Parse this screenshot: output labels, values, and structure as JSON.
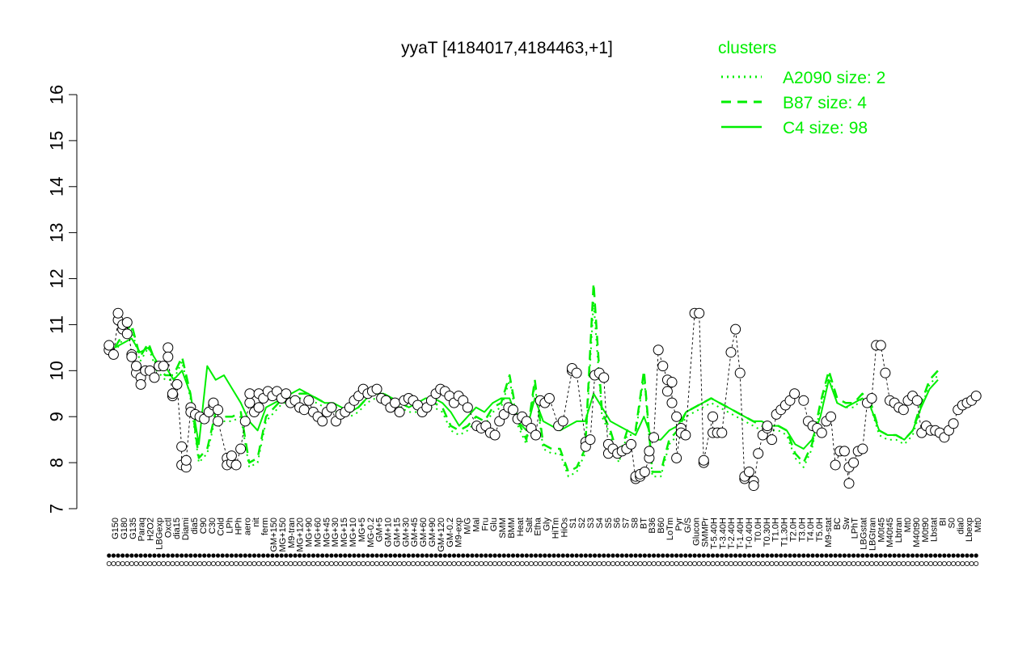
{
  "chart_data": {
    "type": "line",
    "title": "yyaT [4184017,4184463,+1]",
    "xlabel": "",
    "ylabel": "",
    "ylim": [
      7,
      16
    ],
    "yticks": [
      7,
      8,
      9,
      10,
      11,
      12,
      13,
      14,
      15,
      16
    ],
    "grid": false,
    "legend_position": "top-right",
    "legend": {
      "title": "clusters",
      "entries": [
        {
          "label": "A2090 size: 2",
          "style": "dotted"
        },
        {
          "label": "B87 size: 4",
          "style": "dashed"
        },
        {
          "label": "C4 size: 98",
          "style": "solid"
        }
      ]
    },
    "accent_color": "#00ee00",
    "tick_labels": [
      "G150",
      "G180",
      "G135",
      "Paraq",
      "H2O2",
      "LBGexp",
      "Oxctl",
      "dia15",
      "Diami",
      "dia5",
      "C90",
      "C30",
      "Cold",
      "LPh",
      "HPh",
      "aero",
      "nit",
      "ferm",
      "GM+150",
      "MG+150",
      "M9-tran",
      "MG+120",
      "MG+90",
      "MG+60",
      "MG+45",
      "MG+30",
      "MG+15",
      "MG+10",
      "MG+5",
      "MG-0.2",
      "GM+5",
      "GM+10",
      "GM+15",
      "GM+30",
      "GM+45",
      "GM+60",
      "GM+90",
      "GM+120",
      "GM-0.2",
      "M9-exp",
      "M/G",
      "Mal",
      "Fru",
      "Glu",
      "SMM",
      "BMM",
      "Heat",
      "Salt",
      "Etha",
      "Gly",
      "HiTm",
      "HiOs",
      "S1",
      "S2",
      "S3",
      "S4",
      "S5",
      "S6",
      "S7",
      "S8",
      "BT",
      "B36",
      "B60",
      "LoTm",
      "Pyr",
      "G/S",
      "Glucon",
      "SMMPr",
      "T-5.40H",
      "T-3.40H",
      "T-2.40H",
      "T-1.40H",
      "T-0.40H",
      "T0.0H",
      "T0.30H",
      "T1.0H",
      "T1.30H",
      "T2.0H",
      "T3.0H",
      "T4.0H",
      "T5.0H",
      "M9-stat",
      "BC",
      "Sw",
      "LPhT",
      "LBGstat",
      "LBGtran",
      "M0t45",
      "M40t45",
      "Lbtran",
      "Mt0",
      "M40t90",
      "M0t90",
      "Lbstat",
      "BI",
      "S0",
      "dia0",
      "Lbexp",
      "Mt0"
    ],
    "series": [
      {
        "name": "C4 size: 98",
        "style": "solid",
        "values": [
          10.5,
          10.6,
          10.7,
          10.4,
          10.5,
          10.2,
          10.1,
          9.8,
          10.0,
          9.5,
          8.4,
          10.1,
          9.8,
          9.9,
          9.6,
          9.3,
          8.9,
          8.7,
          9.2,
          9.3,
          9.4,
          9.5,
          9.6,
          9.5,
          9.4,
          9.3,
          9.3,
          9.2,
          9.1,
          9.2,
          9.4,
          9.5,
          9.5,
          9.3,
          9.3,
          9.2,
          9.3,
          9.4,
          9.4,
          9.3,
          9.1,
          8.8,
          9.0,
          9.2,
          9.1,
          9.3,
          9.4,
          9.4,
          8.9,
          8.7,
          9.4,
          8.9,
          8.8,
          8.7,
          8.8,
          8.9,
          8.9,
          9.5,
          9.2,
          8.9,
          8.8,
          8.7,
          8.6,
          9.0,
          8.5,
          8.5,
          8.7,
          8.8,
          9.1,
          9.2,
          9.3,
          9.4,
          9.3,
          9.2,
          9.1,
          9.0,
          8.9,
          8.9,
          8.8,
          8.8,
          8.7,
          8.4,
          8.3,
          8.5,
          9.0,
          9.8,
          9.3,
          9.2,
          9.3,
          9.4,
          9.2,
          8.7,
          8.6,
          8.6,
          8.5,
          8.7,
          9.2,
          9.6,
          9.8
        ]
      },
      {
        "name": "B87 size: 4",
        "style": "dashed",
        "values": [
          10.5,
          10.8,
          11.0,
          10.3,
          10.6,
          10.1,
          9.9,
          9.9,
          10.3,
          9.5,
          8.1,
          8.3,
          9.1,
          9.0,
          9.0,
          9.1,
          8.0,
          8.1,
          9.0,
          9.2,
          9.4,
          9.4,
          9.5,
          9.5,
          9.4,
          9.3,
          9.2,
          9.2,
          9.1,
          9.2,
          9.4,
          9.5,
          9.5,
          9.4,
          9.3,
          9.2,
          9.2,
          9.3,
          9.3,
          9.2,
          8.8,
          8.7,
          8.8,
          9.0,
          8.9,
          9.2,
          9.3,
          9.9,
          8.9,
          8.5,
          9.8,
          8.4,
          8.3,
          8.3,
          7.8,
          7.9,
          8.3,
          11.9,
          9.1,
          8.7,
          8.1,
          8.7,
          8.7,
          10.0,
          7.8,
          7.8,
          8.5,
          8.7,
          9.1,
          9.2,
          9.3,
          9.4,
          9.3,
          9.2,
          9.1,
          9.0,
          8.9,
          8.8,
          8.8,
          8.8,
          8.7,
          8.2,
          8.0,
          8.4,
          9.3,
          10.0,
          9.4,
          9.3,
          9.3,
          9.5,
          9.3,
          8.7,
          8.6,
          8.6,
          8.5,
          8.7,
          9.3,
          9.8,
          10.0
        ]
      },
      {
        "name": "A2090 size: 2",
        "style": "dotted",
        "values": [
          10.4,
          10.7,
          10.9,
          10.2,
          10.5,
          10.0,
          9.8,
          9.8,
          10.2,
          9.4,
          8.0,
          8.2,
          9.0,
          8.9,
          8.9,
          9.0,
          7.9,
          8.0,
          8.9,
          9.1,
          9.3,
          9.3,
          9.4,
          9.4,
          9.3,
          9.2,
          9.1,
          9.1,
          9.0,
          9.1,
          9.3,
          9.4,
          9.4,
          9.3,
          9.2,
          9.1,
          9.1,
          9.2,
          9.2,
          9.1,
          8.7,
          8.6,
          8.7,
          8.9,
          8.8,
          9.1,
          9.2,
          9.8,
          8.8,
          8.4,
          9.7,
          8.3,
          8.2,
          8.2,
          7.7,
          7.8,
          8.2,
          11.5,
          9.0,
          8.6,
          8.0,
          8.6,
          8.6,
          9.9,
          7.7,
          7.7,
          8.4,
          8.6,
          9.0,
          9.1,
          9.2,
          9.3,
          9.2,
          9.1,
          9.0,
          8.9,
          8.8,
          8.7,
          8.7,
          8.7,
          8.6,
          8.1,
          7.9,
          8.3,
          9.2,
          9.9,
          9.3,
          9.2,
          9.2,
          9.4,
          9.2,
          8.6,
          8.5,
          8.5,
          8.4,
          8.6,
          9.2,
          9.7,
          9.9
        ]
      }
    ],
    "points": [
      {
        "x": 1,
        "y": 10.45
      },
      {
        "x": 1,
        "y": 10.55
      },
      {
        "x": 2,
        "y": 10.35
      },
      {
        "x": 3,
        "y": 11.1
      },
      {
        "x": 3,
        "y": 11.25
      },
      {
        "x": 4,
        "y": 10.9
      },
      {
        "x": 4,
        "y": 11.0
      },
      {
        "x": 5,
        "y": 10.8
      },
      {
        "x": 5,
        "y": 11.05
      },
      {
        "x": 6,
        "y": 10.35
      },
      {
        "x": 6,
        "y": 10.3
      },
      {
        "x": 7,
        "y": 9.95
      },
      {
        "x": 7,
        "y": 10.1
      },
      {
        "x": 8,
        "y": 9.85
      },
      {
        "x": 8,
        "y": 9.7
      },
      {
        "x": 9,
        "y": 10.0
      },
      {
        "x": 10,
        "y": 10.0
      },
      {
        "x": 11,
        "y": 9.85
      },
      {
        "x": 12,
        "y": 10.1
      },
      {
        "x": 13,
        "y": 10.1
      },
      {
        "x": 14,
        "y": 10.5
      },
      {
        "x": 14,
        "y": 10.3
      },
      {
        "x": 15,
        "y": 9.45
      },
      {
        "x": 15,
        "y": 9.5
      },
      {
        "x": 16,
        "y": 9.7
      },
      {
        "x": 17,
        "y": 8.35
      },
      {
        "x": 17,
        "y": 7.95
      },
      {
        "x": 18,
        "y": 7.9
      },
      {
        "x": 18,
        "y": 8.05
      },
      {
        "x": 19,
        "y": 9.2
      },
      {
        "x": 19,
        "y": 9.1
      },
      {
        "x": 20,
        "y": 9.05
      },
      {
        "x": 21,
        "y": 9.0
      },
      {
        "x": 22,
        "y": 8.95
      },
      {
        "x": 23,
        "y": 9.1
      },
      {
        "x": 24,
        "y": 9.25
      },
      {
        "x": 24,
        "y": 9.3
      },
      {
        "x": 25,
        "y": 9.15
      },
      {
        "x": 25,
        "y": 8.9
      },
      {
        "x": 27,
        "y": 8.1
      },
      {
        "x": 27,
        "y": 7.95
      },
      {
        "x": 28,
        "y": 8.0
      },
      {
        "x": 28,
        "y": 8.15
      },
      {
        "x": 29,
        "y": 7.95
      },
      {
        "x": 30,
        "y": 8.3
      },
      {
        "x": 31,
        "y": 8.9
      },
      {
        "x": 32,
        "y": 9.3
      },
      {
        "x": 32,
        "y": 9.5
      },
      {
        "x": 33,
        "y": 9.1
      },
      {
        "x": 34,
        "y": 9.2
      },
      {
        "x": 34,
        "y": 9.5
      },
      {
        "x": 35,
        "y": 9.4
      },
      {
        "x": 36,
        "y": 9.55
      },
      {
        "x": 37,
        "y": 9.45
      },
      {
        "x": 38,
        "y": 9.55
      },
      {
        "x": 39,
        "y": 9.4
      },
      {
        "x": 40,
        "y": 9.5
      },
      {
        "x": 41,
        "y": 9.3
      },
      {
        "x": 42,
        "y": 9.35
      },
      {
        "x": 43,
        "y": 9.2
      },
      {
        "x": 44,
        "y": 9.15
      },
      {
        "x": 45,
        "y": 9.35
      },
      {
        "x": 46,
        "y": 9.1
      },
      {
        "x": 47,
        "y": 9.0
      },
      {
        "x": 48,
        "y": 8.9
      },
      {
        "x": 49,
        "y": 9.1
      },
      {
        "x": 50,
        "y": 9.2
      },
      {
        "x": 51,
        "y": 8.9
      },
      {
        "x": 52,
        "y": 9.05
      },
      {
        "x": 53,
        "y": 9.1
      },
      {
        "x": 54,
        "y": 9.2
      },
      {
        "x": 55,
        "y": 9.35
      },
      {
        "x": 56,
        "y": 9.45
      },
      {
        "x": 57,
        "y": 9.6
      },
      {
        "x": 58,
        "y": 9.5
      },
      {
        "x": 59,
        "y": 9.55
      },
      {
        "x": 60,
        "y": 9.6
      },
      {
        "x": 61,
        "y": 9.4
      },
      {
        "x": 62,
        "y": 9.35
      },
      {
        "x": 63,
        "y": 9.2
      },
      {
        "x": 64,
        "y": 9.3
      },
      {
        "x": 65,
        "y": 9.1
      },
      {
        "x": 66,
        "y": 9.35
      },
      {
        "x": 67,
        "y": 9.4
      },
      {
        "x": 68,
        "y": 9.35
      },
      {
        "x": 69,
        "y": 9.25
      },
      {
        "x": 70,
        "y": 9.1
      },
      {
        "x": 71,
        "y": 9.2
      },
      {
        "x": 72,
        "y": 9.35
      },
      {
        "x": 73,
        "y": 9.5
      },
      {
        "x": 74,
        "y": 9.6
      },
      {
        "x": 75,
        "y": 9.55
      },
      {
        "x": 76,
        "y": 9.45
      },
      {
        "x": 77,
        "y": 9.3
      },
      {
        "x": 78,
        "y": 9.45
      },
      {
        "x": 79,
        "y": 9.35
      },
      {
        "x": 80,
        "y": 9.2
      },
      {
        "x": 82,
        "y": 8.8
      },
      {
        "x": 83,
        "y": 8.75
      },
      {
        "x": 84,
        "y": 8.8
      },
      {
        "x": 85,
        "y": 8.65
      },
      {
        "x": 86,
        "y": 8.6
      },
      {
        "x": 87,
        "y": 8.9
      },
      {
        "x": 88,
        "y": 9.05
      },
      {
        "x": 89,
        "y": 9.2
      },
      {
        "x": 90,
        "y": 9.15
      },
      {
        "x": 91,
        "y": 8.95
      },
      {
        "x": 92,
        "y": 9.0
      },
      {
        "x": 93,
        "y": 8.9
      },
      {
        "x": 94,
        "y": 8.75
      },
      {
        "x": 95,
        "y": 8.6
      },
      {
        "x": 96,
        "y": 9.35
      },
      {
        "x": 97,
        "y": 9.3
      },
      {
        "x": 98,
        "y": 9.4
      },
      {
        "x": 100,
        "y": 8.8
      },
      {
        "x": 101,
        "y": 8.9
      },
      {
        "x": 103,
        "y": 10.0
      },
      {
        "x": 103,
        "y": 10.05
      },
      {
        "x": 104,
        "y": 9.95
      },
      {
        "x": 106,
        "y": 8.45
      },
      {
        "x": 106,
        "y": 8.35
      },
      {
        "x": 107,
        "y": 8.5
      },
      {
        "x": 108,
        "y": 9.9
      },
      {
        "x": 109,
        "y": 9.95
      },
      {
        "x": 110,
        "y": 9.85
      },
      {
        "x": 111,
        "y": 8.2
      },
      {
        "x": 111,
        "y": 8.4
      },
      {
        "x": 112,
        "y": 8.3
      },
      {
        "x": 113,
        "y": 8.2
      },
      {
        "x": 114,
        "y": 8.25
      },
      {
        "x": 115,
        "y": 8.3
      },
      {
        "x": 116,
        "y": 8.4
      },
      {
        "x": 117,
        "y": 7.65
      },
      {
        "x": 117,
        "y": 7.7
      },
      {
        "x": 118,
        "y": 7.7
      },
      {
        "x": 118,
        "y": 7.75
      },
      {
        "x": 119,
        "y": 7.8
      },
      {
        "x": 120,
        "y": 8.1
      },
      {
        "x": 120,
        "y": 8.25
      },
      {
        "x": 121,
        "y": 8.55
      },
      {
        "x": 122,
        "y": 10.45
      },
      {
        "x": 123,
        "y": 10.1
      },
      {
        "x": 124,
        "y": 9.8
      },
      {
        "x": 124,
        "y": 9.55
      },
      {
        "x": 125,
        "y": 9.75
      },
      {
        "x": 125,
        "y": 9.3
      },
      {
        "x": 126,
        "y": 9.0
      },
      {
        "x": 126,
        "y": 8.1
      },
      {
        "x": 127,
        "y": 8.75
      },
      {
        "x": 127,
        "y": 8.65
      },
      {
        "x": 128,
        "y": 8.6
      },
      {
        "x": 130,
        "y": 11.25
      },
      {
        "x": 131,
        "y": 11.25
      },
      {
        "x": 132,
        "y": 8.0
      },
      {
        "x": 132,
        "y": 8.05
      },
      {
        "x": 134,
        "y": 9.0
      },
      {
        "x": 134,
        "y": 8.65
      },
      {
        "x": 135,
        "y": 8.65
      },
      {
        "x": 136,
        "y": 8.65
      },
      {
        "x": 138,
        "y": 10.4
      },
      {
        "x": 139,
        "y": 10.9
      },
      {
        "x": 140,
        "y": 9.95
      },
      {
        "x": 141,
        "y": 7.65
      },
      {
        "x": 141,
        "y": 7.7
      },
      {
        "x": 142,
        "y": 7.8
      },
      {
        "x": 143,
        "y": 7.6
      },
      {
        "x": 143,
        "y": 7.5
      },
      {
        "x": 144,
        "y": 8.2
      },
      {
        "x": 145,
        "y": 8.6
      },
      {
        "x": 146,
        "y": 8.75
      },
      {
        "x": 146,
        "y": 8.8
      },
      {
        "x": 147,
        "y": 8.5
      },
      {
        "x": 148,
        "y": 9.05
      },
      {
        "x": 149,
        "y": 9.15
      },
      {
        "x": 150,
        "y": 9.25
      },
      {
        "x": 151,
        "y": 9.35
      },
      {
        "x": 152,
        "y": 9.5
      },
      {
        "x": 154,
        "y": 9.35
      },
      {
        "x": 155,
        "y": 8.9
      },
      {
        "x": 156,
        "y": 8.8
      },
      {
        "x": 157,
        "y": 8.75
      },
      {
        "x": 158,
        "y": 8.65
      },
      {
        "x": 159,
        "y": 8.9
      },
      {
        "x": 160,
        "y": 9.0
      },
      {
        "x": 161,
        "y": 7.95
      },
      {
        "x": 162,
        "y": 8.25
      },
      {
        "x": 163,
        "y": 8.25
      },
      {
        "x": 164,
        "y": 7.55
      },
      {
        "x": 164,
        "y": 7.9
      },
      {
        "x": 165,
        "y": 8.0
      },
      {
        "x": 166,
        "y": 8.25
      },
      {
        "x": 167,
        "y": 8.3
      },
      {
        "x": 168,
        "y": 9.3
      },
      {
        "x": 169,
        "y": 9.4
      },
      {
        "x": 170,
        "y": 10.55
      },
      {
        "x": 171,
        "y": 10.55
      },
      {
        "x": 172,
        "y": 9.95
      },
      {
        "x": 173,
        "y": 9.35
      },
      {
        "x": 174,
        "y": 9.3
      },
      {
        "x": 175,
        "y": 9.2
      },
      {
        "x": 176,
        "y": 9.15
      },
      {
        "x": 177,
        "y": 9.35
      },
      {
        "x": 178,
        "y": 9.45
      },
      {
        "x": 179,
        "y": 9.35
      },
      {
        "x": 180,
        "y": 8.65
      },
      {
        "x": 181,
        "y": 8.8
      },
      {
        "x": 182,
        "y": 8.7
      },
      {
        "x": 183,
        "y": 8.7
      },
      {
        "x": 184,
        "y": 8.65
      },
      {
        "x": 185,
        "y": 8.55
      },
      {
        "x": 186,
        "y": 8.7
      },
      {
        "x": 187,
        "y": 8.85
      },
      {
        "x": 188,
        "y": 9.15
      },
      {
        "x": 189,
        "y": 9.25
      },
      {
        "x": 190,
        "y": 9.3
      },
      {
        "x": 191,
        "y": 9.35
      },
      {
        "x": 192,
        "y": 9.45
      }
    ],
    "n_columns": 192
  }
}
